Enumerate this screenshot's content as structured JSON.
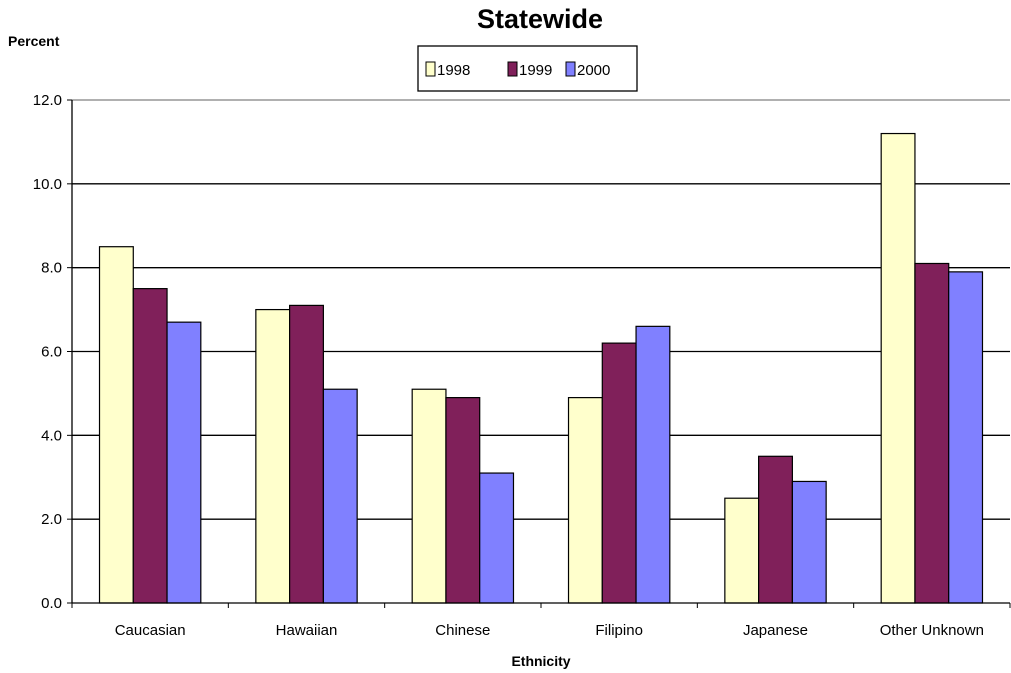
{
  "chart_data": {
    "type": "bar",
    "title": "Statewide",
    "ylabel": "Percent",
    "xlabel": "Ethnicity",
    "categories": [
      "Caucasian",
      "Hawaiian",
      "Chinese",
      "Filipino",
      "Japanese",
      "Other Unknown"
    ],
    "series": [
      {
        "name": "1998",
        "color": "#ffffcc",
        "values": [
          8.5,
          7.0,
          5.1,
          4.9,
          2.5,
          11.2
        ]
      },
      {
        "name": "1999",
        "color": "#80205a",
        "values": [
          7.5,
          7.1,
          4.9,
          6.2,
          3.5,
          8.1
        ]
      },
      {
        "name": "2000",
        "color": "#8080ff",
        "values": [
          6.7,
          5.1,
          3.1,
          6.6,
          2.9,
          7.9
        ]
      }
    ],
    "ylim": [
      0,
      12
    ],
    "yticks": [
      "0.0",
      "2.0",
      "4.0",
      "6.0",
      "8.0",
      "10.0",
      "12.0"
    ],
    "grid": true,
    "legend_position": "top-center"
  }
}
